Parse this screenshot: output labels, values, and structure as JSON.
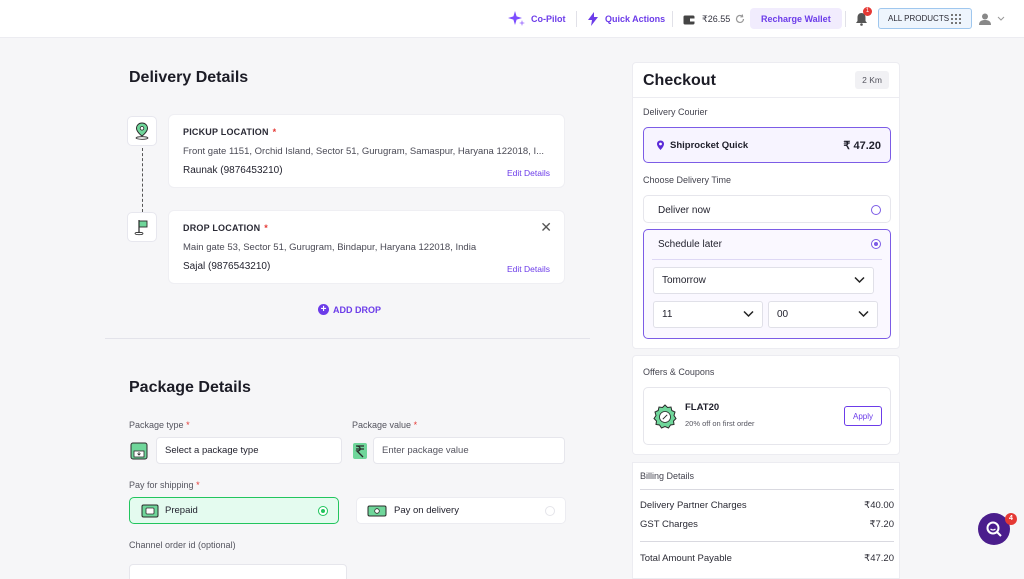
{
  "topbar": {
    "copilot_label": "Co-Pilot",
    "quick_actions_label": "Quick Actions",
    "wallet_balance": "₹26.55",
    "recharge_label": "Recharge Wallet",
    "notification_count": "1",
    "all_products_label": "ALL PRODUCTS"
  },
  "delivery": {
    "title": "Delivery Details",
    "pickup": {
      "label": "PICKUP LOCATION",
      "required": "*",
      "address": "Front gate 1151, Orchid Island, Sector 51, Gurugram, Samaspur, Haryana 122018, I...",
      "contact": "Raunak (9876453210)",
      "edit_label": "Edit Details"
    },
    "drop": {
      "label": "DROP LOCATION",
      "required": "*",
      "address": "Main gate 53, Sector 51, Gurugram, Bindapur, Haryana 122018, India",
      "contact": "Sajal (9876543210)",
      "edit_label": "Edit Details"
    },
    "add_drop_label": "ADD DROP"
  },
  "package": {
    "title": "Package Details",
    "type_label": "Package type",
    "type_placeholder": "Select a package type",
    "value_label": "Package value",
    "value_placeholder": "Enter package value",
    "required": "*",
    "pay_label": "Pay for shipping",
    "pay_options": [
      {
        "label": "Prepaid",
        "selected": true
      },
      {
        "label": "Pay on delivery",
        "selected": false
      }
    ],
    "channel_label": "Channel order id (optional)"
  },
  "checkout": {
    "title": "Checkout",
    "distance": "2 Km",
    "courier_section": "Delivery Courier",
    "courier_name": "Shiprocket Quick",
    "courier_price": "₹ 47.20",
    "time_section": "Choose Delivery Time",
    "deliver_now_label": "Deliver now",
    "schedule_later_label": "Schedule later",
    "day_value": "Tomorrow",
    "hour_value": "11",
    "minute_value": "00"
  },
  "offers": {
    "title": "Offers & Coupons",
    "code": "FLAT20",
    "description": "20% off on first order",
    "apply_label": "Apply"
  },
  "billing": {
    "title": "Billing Details",
    "rows": [
      {
        "label": "Delivery Partner Charges",
        "value": "₹40.00"
      },
      {
        "label": "GST Charges",
        "value": "₹7.20"
      }
    ],
    "total_label": "Total Amount Payable",
    "total_value": "₹47.20"
  },
  "chat": {
    "badge": "4"
  },
  "colors": {
    "accent": "#6c3ce9",
    "success": "#22c55e",
    "danger": "#e53935"
  }
}
